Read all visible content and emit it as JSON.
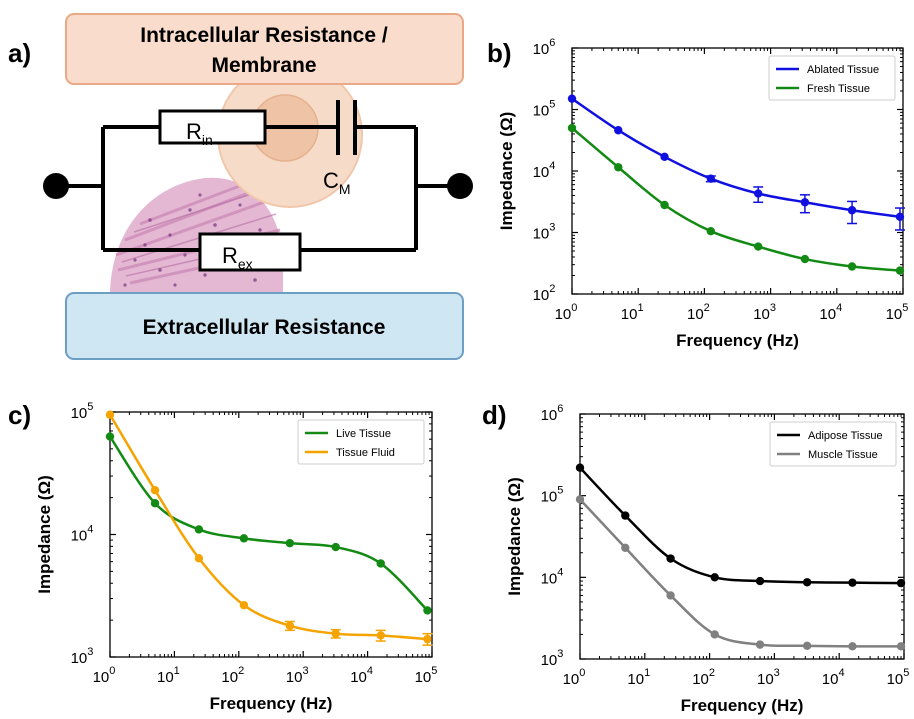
{
  "panels": {
    "a": {
      "letter": "a)",
      "top_box": {
        "line1": "Intracellular Resistance /",
        "line2": "Membrane",
        "fill": "#f9dccb",
        "stroke": "#e9a987"
      },
      "bottom_box": {
        "text": "Extracellular Resistance",
        "fill": "#cfe6f3",
        "stroke": "#6d9ec4"
      },
      "components": {
        "rin": {
          "main": "R",
          "sub": "in"
        },
        "rex": {
          "main": "R",
          "sub": "ex"
        },
        "cm": {
          "main": "C",
          "sub": "M"
        }
      },
      "cell_color": "#f5d8c4",
      "tissue_color": "#d9a9c8"
    },
    "b": {
      "letter": "b)"
    },
    "c": {
      "letter": "c)"
    },
    "d": {
      "letter": "d)"
    }
  },
  "chart_data": [
    {
      "panel": "b",
      "type": "line",
      "xscale": "log",
      "yscale": "log",
      "xlabel": "Frequency (Hz)",
      "ylabel": "Impedance (Ω)",
      "xlim": [
        1,
        100000
      ],
      "ylim": [
        100,
        1000000
      ],
      "xticks": [
        {
          "b": "10",
          "e": "0"
        },
        {
          "b": "10",
          "e": "1"
        },
        {
          "b": "10",
          "e": "2"
        },
        {
          "b": "10",
          "e": "3"
        },
        {
          "b": "10",
          "e": "4"
        },
        {
          "b": "10",
          "e": "5"
        }
      ],
      "yticks": [
        {
          "b": "10",
          "e": "2"
        },
        {
          "b": "10",
          "e": "3"
        },
        {
          "b": "10",
          "e": "4"
        },
        {
          "b": "10",
          "e": "5"
        },
        {
          "b": "10",
          "e": "6"
        }
      ],
      "legend_position": "top-right",
      "x": [
        1,
        5,
        25,
        125,
        650,
        3300,
        17000,
        90000
      ],
      "series": [
        {
          "name": "Ablated Tissue",
          "color": "#1010e0",
          "marker": "circle",
          "values": [
            150000,
            46000,
            17000,
            7500,
            4300,
            3100,
            2300,
            1800
          ],
          "errors": [
            0,
            0,
            0,
            800,
            1200,
            1000,
            900,
            700
          ]
        },
        {
          "name": "Fresh Tissue",
          "color": "#138a13",
          "marker": "circle",
          "values": [
            50000,
            11500,
            2800,
            1050,
            590,
            370,
            280,
            240
          ],
          "errors": [
            0,
            0,
            0,
            0,
            0,
            0,
            0,
            0
          ]
        }
      ]
    },
    {
      "panel": "c",
      "type": "line",
      "xscale": "log",
      "yscale": "log",
      "xlabel": "Frequency (Hz)",
      "ylabel": "Impedance (Ω)",
      "xlim": [
        1,
        100000
      ],
      "ylim": [
        1000,
        100000
      ],
      "xticks": [
        {
          "b": "10",
          "e": "0"
        },
        {
          "b": "10",
          "e": "1"
        },
        {
          "b": "10",
          "e": "2"
        },
        {
          "b": "10",
          "e": "3"
        },
        {
          "b": "10",
          "e": "4"
        },
        {
          "b": "10",
          "e": "5"
        }
      ],
      "yticks": [
        {
          "b": "10",
          "e": "3"
        },
        {
          "b": "10",
          "e": "4"
        },
        {
          "b": "10",
          "e": "5"
        }
      ],
      "legend_position": "top-right",
      "x": [
        1,
        5,
        24,
        120,
        620,
        3200,
        16000,
        85000
      ],
      "series": [
        {
          "name": "Live Tissue",
          "color": "#138a13",
          "marker": "circle",
          "values": [
            63000,
            18000,
            11000,
            9300,
            8500,
            7900,
            5800,
            2400
          ],
          "errors": [
            0,
            0,
            0,
            0,
            0,
            0,
            0,
            0
          ]
        },
        {
          "name": "Tissue Fluid",
          "color": "#f5a300",
          "marker": "circle",
          "values": [
            95000,
            23000,
            6400,
            2650,
            1800,
            1550,
            1500,
            1400
          ],
          "errors": [
            0,
            0,
            0,
            0,
            150,
            120,
            150,
            150
          ]
        }
      ]
    },
    {
      "panel": "d",
      "type": "line",
      "xscale": "log",
      "yscale": "log",
      "xlabel": "Frequency (Hz)",
      "ylabel": "Impedance (Ω)",
      "xlim": [
        1,
        100000
      ],
      "ylim": [
        1000,
        1000000
      ],
      "xticks": [
        {
          "b": "10",
          "e": "0"
        },
        {
          "b": "10",
          "e": "1"
        },
        {
          "b": "10",
          "e": "2"
        },
        {
          "b": "10",
          "e": "3"
        },
        {
          "b": "10",
          "e": "4"
        },
        {
          "b": "10",
          "e": "5"
        }
      ],
      "yticks": [
        {
          "b": "10",
          "e": "3"
        },
        {
          "b": "10",
          "e": "4"
        },
        {
          "b": "10",
          "e": "5"
        },
        {
          "b": "10",
          "e": "6"
        }
      ],
      "legend_position": "top-right",
      "x": [
        1,
        5,
        25,
        120,
        600,
        3200,
        16000,
        90000
      ],
      "series": [
        {
          "name": "Adipose Tissue",
          "color": "#000000",
          "marker": "circle",
          "values": [
            220000,
            57000,
            17000,
            10000,
            9000,
            8700,
            8600,
            8500
          ],
          "errors": [
            0,
            0,
            0,
            0,
            0,
            0,
            0,
            0
          ]
        },
        {
          "name": "Muscle Tissue",
          "color": "#808080",
          "marker": "circle",
          "values": [
            90000,
            23000,
            6000,
            2000,
            1500,
            1450,
            1430,
            1430
          ],
          "errors": [
            0,
            0,
            0,
            0,
            0,
            0,
            0,
            0
          ]
        }
      ]
    }
  ]
}
